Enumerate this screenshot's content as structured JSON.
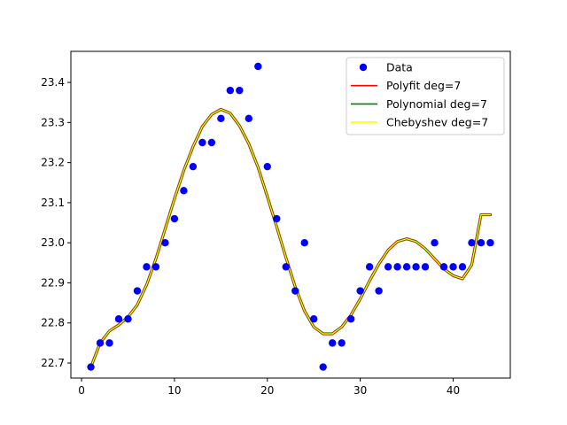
{
  "chart_data": {
    "type": "scatter",
    "title": "",
    "xlabel": "",
    "ylabel": "",
    "xlim": [
      -1.15,
      46.15
    ],
    "ylim": [
      22.6625,
      23.4775
    ],
    "xticks": [
      0,
      10,
      20,
      30,
      40
    ],
    "yticks": [
      22.7,
      22.8,
      22.9,
      23.0,
      23.1,
      23.2,
      23.3,
      23.4
    ],
    "xtick_labels": [
      "0",
      "10",
      "20",
      "30",
      "40"
    ],
    "ytick_labels": [
      "22.7",
      "22.8",
      "22.9",
      "23.0",
      "23.1",
      "23.2",
      "23.3",
      "23.4"
    ],
    "legend_position": "top-right",
    "grid": false,
    "series": [
      {
        "name": "Data",
        "kind": "scatter",
        "color": "#0000ff",
        "x": [
          1,
          2,
          3,
          4,
          5,
          6,
          7,
          8,
          9,
          10,
          11,
          12,
          13,
          14,
          15,
          16,
          17,
          18,
          19,
          20,
          21,
          22,
          23,
          24,
          25,
          26,
          27,
          28,
          29,
          30,
          31,
          32,
          33,
          34,
          35,
          36,
          37,
          38,
          39,
          40,
          41,
          42,
          43,
          44
        ],
        "y": [
          22.69,
          22.75,
          22.75,
          22.81,
          22.81,
          22.88,
          22.94,
          22.94,
          23.0,
          23.06,
          23.13,
          23.19,
          23.25,
          23.25,
          23.31,
          23.38,
          23.38,
          23.31,
          23.44,
          23.19,
          23.06,
          22.94,
          22.88,
          23.0,
          22.81,
          22.69,
          22.75,
          22.75,
          22.81,
          22.88,
          22.94,
          22.88,
          22.94,
          22.94,
          22.94,
          22.94,
          22.94,
          23.0,
          22.94,
          22.94,
          22.94,
          23.0,
          23.0,
          23.0
        ]
      },
      {
        "name": "Polyfit deg=7",
        "kind": "line",
        "color": "#ff0000",
        "x": [
          1,
          2,
          3,
          4,
          5,
          6,
          7,
          8,
          9,
          10,
          11,
          12,
          13,
          14,
          15,
          16,
          17,
          18,
          19,
          20,
          21,
          22,
          23,
          24,
          25,
          26,
          27,
          28,
          29,
          30,
          31,
          32,
          33,
          34,
          35,
          36,
          37,
          38,
          39,
          40,
          41,
          42,
          43,
          44
        ],
        "y": [
          22.69,
          22.75,
          22.78,
          22.795,
          22.815,
          22.845,
          22.895,
          22.96,
          23.035,
          23.11,
          23.18,
          23.24,
          23.29,
          23.32,
          23.333,
          23.323,
          23.292,
          23.247,
          23.188,
          23.115,
          23.04,
          22.963,
          22.89,
          22.83,
          22.79,
          22.773,
          22.773,
          22.79,
          22.82,
          22.86,
          22.905,
          22.947,
          22.982,
          23.003,
          23.01,
          23.003,
          22.985,
          22.96,
          22.935,
          22.918,
          22.91,
          22.945,
          23.07,
          23.07
        ]
      },
      {
        "name": "Polynomial deg=7",
        "kind": "line",
        "color": "#008000",
        "x": [
          1,
          2,
          3,
          4,
          5,
          6,
          7,
          8,
          9,
          10,
          11,
          12,
          13,
          14,
          15,
          16,
          17,
          18,
          19,
          20,
          21,
          22,
          23,
          24,
          25,
          26,
          27,
          28,
          29,
          30,
          31,
          32,
          33,
          34,
          35,
          36,
          37,
          38,
          39,
          40,
          41,
          42,
          43,
          44
        ],
        "y": [
          22.69,
          22.75,
          22.78,
          22.795,
          22.815,
          22.845,
          22.895,
          22.96,
          23.035,
          23.11,
          23.18,
          23.24,
          23.29,
          23.32,
          23.333,
          23.323,
          23.292,
          23.247,
          23.188,
          23.115,
          23.04,
          22.963,
          22.89,
          22.83,
          22.79,
          22.773,
          22.773,
          22.79,
          22.82,
          22.86,
          22.905,
          22.947,
          22.982,
          23.003,
          23.01,
          23.003,
          22.985,
          22.96,
          22.935,
          22.918,
          22.91,
          22.945,
          23.07,
          23.07
        ]
      },
      {
        "name": "Chebyshev deg=7",
        "kind": "line",
        "color": "#ffff00",
        "x": [
          1,
          2,
          3,
          4,
          5,
          6,
          7,
          8,
          9,
          10,
          11,
          12,
          13,
          14,
          15,
          16,
          17,
          18,
          19,
          20,
          21,
          22,
          23,
          24,
          25,
          26,
          27,
          28,
          29,
          30,
          31,
          32,
          33,
          34,
          35,
          36,
          37,
          38,
          39,
          40,
          41,
          42,
          43,
          44
        ],
        "y": [
          22.69,
          22.75,
          22.78,
          22.795,
          22.815,
          22.845,
          22.895,
          22.96,
          23.035,
          23.11,
          23.18,
          23.24,
          23.29,
          23.32,
          23.333,
          23.323,
          23.292,
          23.247,
          23.188,
          23.115,
          23.04,
          22.963,
          22.89,
          22.83,
          22.79,
          22.773,
          22.773,
          22.79,
          22.82,
          22.86,
          22.905,
          22.947,
          22.982,
          23.003,
          23.01,
          23.003,
          22.985,
          22.96,
          22.935,
          22.918,
          22.91,
          22.945,
          23.07,
          23.07
        ]
      }
    ]
  }
}
